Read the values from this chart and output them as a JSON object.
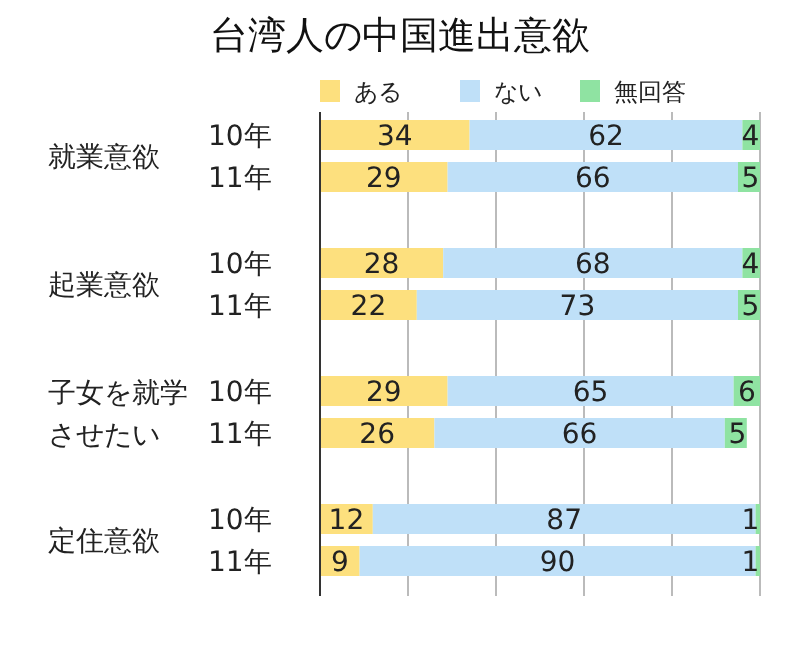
{
  "chart_data": {
    "type": "bar",
    "orientation": "horizontal",
    "stacked": true,
    "title": "台湾人の中国進出意欲",
    "categories": [
      "10年",
      "11年",
      "10年",
      "11年",
      "10年",
      "11年",
      "10年",
      "11年"
    ],
    "series": [
      {
        "name": "ある",
        "color": "#fde07e",
        "values": [
          34,
          29,
          28,
          22,
          29,
          26,
          12,
          9
        ]
      },
      {
        "name": "ない",
        "color": "#bfe0f8",
        "values": [
          62,
          66,
          68,
          73,
          65,
          66,
          87,
          90
        ]
      },
      {
        "name": "無回答",
        "color": "#8fe3a2",
        "values": [
          4,
          5,
          4,
          5,
          6,
          5,
          1,
          1
        ]
      }
    ],
    "annotations": [
      "就業意欲",
      "起業意欲",
      "子女を就学させたい",
      "定住意欲"
    ],
    "xlim": [
      0,
      100
    ],
    "xticks": [
      {
        "value": 0,
        "label": null
      },
      {
        "value": 20,
        "label": null
      },
      {
        "value": 40,
        "label": null
      },
      {
        "value": 60,
        "label": null
      },
      {
        "value": 80,
        "label": null
      },
      {
        "value": 100,
        "label": null
      }
    ],
    "grid": "x",
    "legend": "top",
    "data_labels": true
  }
}
